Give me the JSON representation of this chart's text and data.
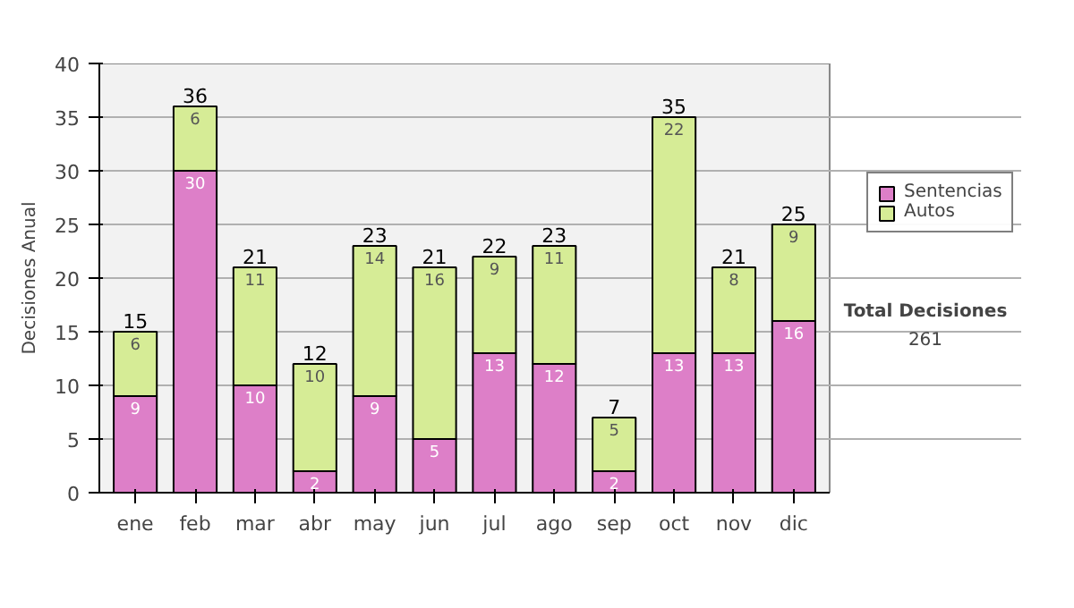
{
  "chart_data": {
    "type": "bar",
    "stacked": true,
    "ylabel": "Decisiones Anual",
    "categories": [
      "ene",
      "feb",
      "mar",
      "abr",
      "may",
      "jun",
      "jul",
      "ago",
      "sep",
      "oct",
      "nov",
      "dic"
    ],
    "series": [
      {
        "name": "Sentencias",
        "color": "#dd7fc8",
        "values": [
          9,
          30,
          10,
          2,
          9,
          5,
          13,
          12,
          2,
          13,
          13,
          16
        ]
      },
      {
        "name": "Autos",
        "color": "#d6ec96",
        "values": [
          6,
          6,
          11,
          10,
          14,
          16,
          9,
          11,
          5,
          22,
          8,
          9
        ]
      }
    ],
    "ylim": [
      0,
      40
    ],
    "yticks": [
      0,
      5,
      10,
      15,
      20,
      25,
      30,
      35,
      40
    ],
    "grid": "y",
    "legend": "right",
    "data_labels": true,
    "totals": [
      "15",
      "36",
      "21",
      "12",
      "23",
      "21",
      "22",
      "23",
      "7",
      "35",
      "21",
      "25"
    ],
    "annotations": [
      "Total Decisiones",
      "261"
    ]
  }
}
